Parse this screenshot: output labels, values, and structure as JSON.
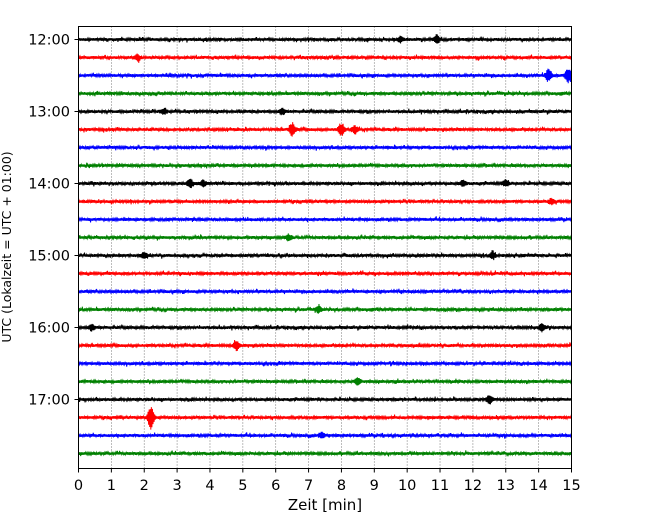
{
  "chart_data": {
    "type": "line",
    "xlabel": "Zeit  [min]",
    "ylabel": "UTC (Lokalzeit = UTC + 01:00)",
    "xlim": [
      0,
      15
    ],
    "x_ticks": [
      "0",
      "1",
      "2",
      "3",
      "4",
      "5",
      "6",
      "7",
      "8",
      "9",
      "10",
      "11",
      "12",
      "13",
      "14",
      "15"
    ],
    "y_ticks": [
      "12:00",
      "13:00",
      "14:00",
      "15:00",
      "16:00",
      "17:00"
    ],
    "grid": "vertical dotted lines at each minute",
    "row_interval_minutes": 15,
    "colors_cycle": [
      "#000000",
      "#ff0000",
      "#0000ff",
      "#008000"
    ],
    "traces": [
      {
        "start": "12:00",
        "color": "#000000",
        "events": [
          [
            9.8,
            3
          ],
          [
            10.9,
            4
          ]
        ]
      },
      {
        "start": "12:15",
        "color": "#ff0000",
        "events": [
          [
            1.8,
            3
          ]
        ]
      },
      {
        "start": "12:30",
        "color": "#0000ff",
        "events": [
          [
            14.3,
            6
          ],
          [
            14.9,
            7
          ]
        ]
      },
      {
        "start": "12:45",
        "color": "#008000",
        "events": []
      },
      {
        "start": "13:00",
        "color": "#000000",
        "events": [
          [
            2.6,
            3
          ],
          [
            6.2,
            3
          ]
        ]
      },
      {
        "start": "13:15",
        "color": "#ff0000",
        "events": [
          [
            6.5,
            7
          ],
          [
            8.0,
            6
          ],
          [
            8.4,
            4
          ]
        ]
      },
      {
        "start": "13:30",
        "color": "#0000ff",
        "events": []
      },
      {
        "start": "13:45",
        "color": "#008000",
        "events": []
      },
      {
        "start": "14:00",
        "color": "#000000",
        "events": [
          [
            3.4,
            4
          ],
          [
            3.8,
            3
          ],
          [
            11.7,
            3
          ],
          [
            13.0,
            3
          ]
        ]
      },
      {
        "start": "14:15",
        "color": "#ff0000",
        "events": [
          [
            14.4,
            3
          ]
        ]
      },
      {
        "start": "14:30",
        "color": "#0000ff",
        "events": []
      },
      {
        "start": "14:45",
        "color": "#008000",
        "events": [
          [
            6.4,
            3
          ]
        ]
      },
      {
        "start": "15:00",
        "color": "#000000",
        "events": [
          [
            2.0,
            3
          ],
          [
            12.6,
            4
          ]
        ]
      },
      {
        "start": "15:15",
        "color": "#ff0000",
        "events": []
      },
      {
        "start": "15:30",
        "color": "#0000ff",
        "events": []
      },
      {
        "start": "15:45",
        "color": "#008000",
        "events": [
          [
            7.3,
            3
          ]
        ]
      },
      {
        "start": "16:00",
        "color": "#000000",
        "events": [
          [
            0.4,
            3
          ],
          [
            14.1,
            3
          ]
        ]
      },
      {
        "start": "16:15",
        "color": "#ff0000",
        "events": [
          [
            4.8,
            4
          ]
        ]
      },
      {
        "start": "16:30",
        "color": "#0000ff",
        "events": []
      },
      {
        "start": "16:45",
        "color": "#008000",
        "events": [
          [
            8.5,
            3
          ]
        ]
      },
      {
        "start": "17:00",
        "color": "#000000",
        "events": [
          [
            12.5,
            4
          ]
        ]
      },
      {
        "start": "17:15",
        "color": "#ff0000",
        "events": [
          [
            2.2,
            11
          ]
        ]
      },
      {
        "start": "17:30",
        "color": "#0000ff",
        "events": [
          [
            7.4,
            3
          ]
        ]
      },
      {
        "start": "17:45",
        "color": "#008000",
        "events": []
      }
    ]
  }
}
